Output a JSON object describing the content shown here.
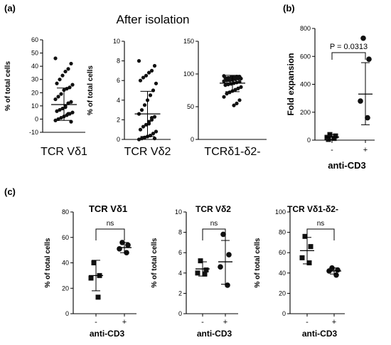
{
  "figure": {
    "panel_labels": {
      "a": "(a)",
      "b": "(b)",
      "c": "(c)"
    },
    "panel_a_heading": "After isolation"
  },
  "chart_data": [
    {
      "id": "a1",
      "type": "scatter",
      "title": "",
      "xlabel": "TCR Vδ1",
      "ylabel": "% of total cells",
      "ylim": [
        -10,
        60
      ],
      "yticks": [
        -10,
        0,
        10,
        20,
        30,
        40,
        50,
        60
      ],
      "series": [
        {
          "values": [
            46,
            42,
            38,
            36,
            33,
            30,
            27,
            26,
            24,
            23,
            22,
            19,
            17,
            15,
            13,
            12,
            10,
            8,
            7,
            6,
            5,
            4,
            3,
            2,
            1,
            0,
            -1,
            -2,
            4,
            9
          ],
          "mean": 11,
          "sd_low": -1,
          "sd_high": 23.5
        }
      ]
    },
    {
      "id": "a2",
      "type": "scatter",
      "title": "",
      "xlabel": "TCR Vδ2",
      "ylabel": "% of total cells",
      "ylim": [
        0,
        10
      ],
      "yticks": [
        0,
        2,
        4,
        6,
        8,
        10
      ],
      "series": [
        {
          "values": [
            8.0,
            7.5,
            7.0,
            6.8,
            6.5,
            6.3,
            6.0,
            5.7,
            5.0,
            4.5,
            4.0,
            3.5,
            3.0,
            2.6,
            2.3,
            2.0,
            1.8,
            1.5,
            1.3,
            1.0,
            0.8,
            0.6,
            0.4,
            0.3,
            0.2,
            0.1,
            0.0,
            0.1,
            2.2,
            1.6
          ],
          "mean": 2.6,
          "sd_low": 0.3,
          "sd_high": 4.9
        }
      ]
    },
    {
      "id": "a3",
      "type": "scatter",
      "title": "",
      "xlabel": "TCRδ1-δ2-",
      "ylabel": "",
      "ylim": [
        0,
        150
      ],
      "yticks": [
        0,
        50,
        100,
        150
      ],
      "series": [
        {
          "values": [
            97,
            96,
            96,
            95,
            95,
            94,
            94,
            93,
            93,
            92,
            91,
            90,
            90,
            89,
            88,
            87,
            86,
            85,
            84,
            83,
            80,
            78,
            76,
            74,
            72,
            70,
            65,
            60,
            55,
            52
          ],
          "mean": 86,
          "sd_low": 73,
          "sd_high": 98
        }
      ]
    },
    {
      "id": "b",
      "type": "scatter",
      "title": "",
      "xlabel": "anti-CD3",
      "ylabel": "Fold expansion",
      "categories": [
        "-",
        "+"
      ],
      "ylim": [
        0,
        800
      ],
      "yticks": [
        0,
        200,
        400,
        600,
        800
      ],
      "annotation": "P = 0.0313",
      "series": [
        {
          "category": "-",
          "values": [
            40,
            30,
            20,
            12,
            5
          ],
          "mean": 22,
          "sd_low": 5,
          "sd_high": 40
        },
        {
          "category": "+",
          "values": [
            730,
            580,
            280,
            160
          ],
          "mean": 330,
          "sd_low": 110,
          "sd_high": 555
        }
      ]
    },
    {
      "id": "c1",
      "type": "scatter",
      "title": "TCR Vδ1",
      "xlabel": "anti-CD3",
      "ylabel": "% of total cells",
      "categories": [
        "-",
        "+"
      ],
      "ylim": [
        0,
        80
      ],
      "yticks": [
        0,
        20,
        40,
        60,
        80
      ],
      "annotation": "ns",
      "series": [
        {
          "category": "-",
          "values": [
            40,
            30,
            28,
            13
          ],
          "mean": 30,
          "sd_low": 18,
          "sd_high": 42
        },
        {
          "category": "+",
          "values": [
            56,
            54,
            51,
            48
          ],
          "mean": 52,
          "sd_low": 48,
          "sd_high": 56
        }
      ]
    },
    {
      "id": "c2",
      "type": "scatter",
      "title": "TCR Vδ2",
      "xlabel": "anti-CD3",
      "ylabel": "% of total cells",
      "categories": [
        "-",
        "+"
      ],
      "ylim": [
        0,
        10
      ],
      "yticks": [
        0,
        2,
        4,
        6,
        8,
        10
      ],
      "annotation": "ns",
      "series": [
        {
          "category": "-",
          "values": [
            5.2,
            4.3,
            4.0,
            3.9
          ],
          "mean": 4.4,
          "sd_low": 3.7,
          "sd_high": 5.1
        },
        {
          "category": "+",
          "values": [
            7.8,
            5.8,
            4.6,
            2.8
          ],
          "mean": 5.1,
          "sd_low": 2.9,
          "sd_high": 7.2
        }
      ]
    },
    {
      "id": "c3",
      "type": "scatter",
      "title": "TCR Vδ1-δ2-",
      "xlabel": "anti-CD3",
      "ylabel": "% of total cells",
      "categories": [
        "-",
        "+"
      ],
      "ylim": [
        0,
        100
      ],
      "yticks": [
        0,
        20,
        40,
        60,
        80,
        100
      ],
      "annotation": "ns",
      "series": [
        {
          "category": "-",
          "values": [
            76,
            66,
            55,
            50
          ],
          "mean": 62,
          "sd_low": 49,
          "sd_high": 75
        },
        {
          "category": "+",
          "values": [
            45,
            43,
            42,
            38
          ],
          "mean": 42,
          "sd_low": 39,
          "sd_high": 45
        }
      ]
    }
  ]
}
